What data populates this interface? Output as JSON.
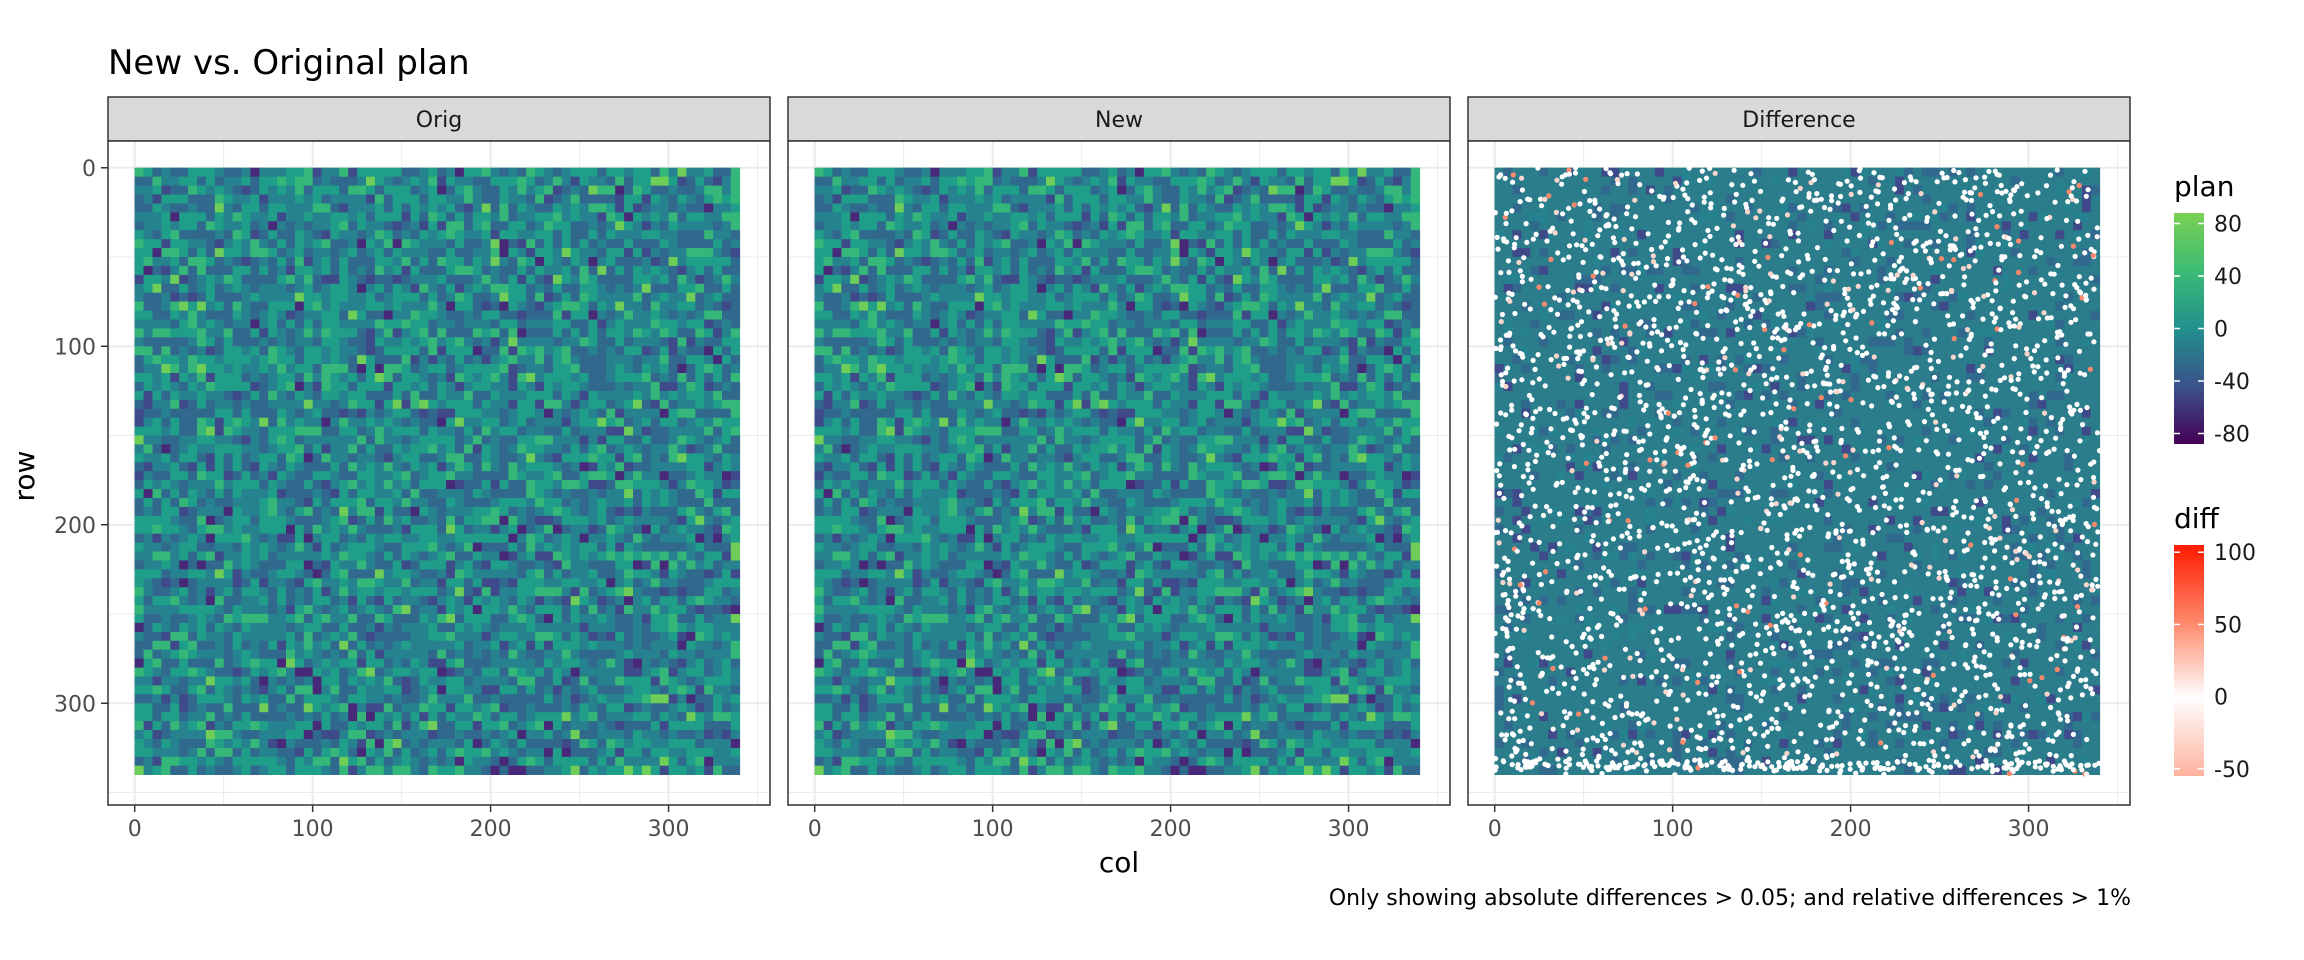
{
  "chart_data": {
    "type": "heatmap",
    "title": "New vs. Original plan",
    "caption": "Only showing absolute differences > 0.05; and relative differences > 1%",
    "xlabel": "col",
    "ylabel": "row",
    "panels": [
      {
        "label": "Orig"
      },
      {
        "label": "New"
      },
      {
        "label": "Difference"
      }
    ],
    "x_axis": {
      "range": [
        -15,
        357
      ],
      "ticks": [
        0,
        100,
        200,
        300
      ]
    },
    "y_axis": {
      "range": [
        -15,
        357
      ],
      "reversed": true,
      "ticks": [
        0,
        100,
        200,
        300
      ]
    },
    "grid_extent": {
      "cols": [
        0,
        340
      ],
      "rows": [
        0,
        340
      ]
    },
    "legends": [
      {
        "title": "plan",
        "scale": "viridis",
        "range": [
          -88,
          88
        ],
        "ticks": [
          80,
          40,
          0,
          -40,
          -80
        ],
        "colors": [
          "#440154",
          "#3b528b",
          "#21908d",
          "#5dc963",
          "#7ad151"
        ]
      },
      {
        "title": "diff",
        "scale": "gradient",
        "range": [
          -55,
          105
        ],
        "ticks": [
          100,
          50,
          0,
          -50
        ],
        "colors": [
          "#ffb29e",
          "#ffffff",
          "#ff8a6c",
          "#ff1a00"
        ]
      }
    ],
    "grid": true,
    "theme": "bw"
  }
}
